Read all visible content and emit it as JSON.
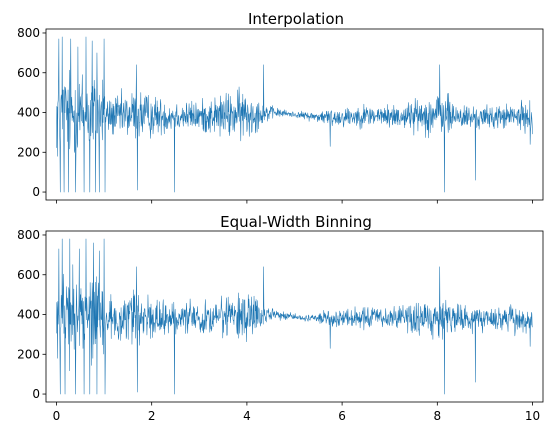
{
  "chart_data": [
    {
      "type": "line",
      "title": "Interpolation",
      "xlabel": "",
      "ylabel": "",
      "xlim": [
        -0.22,
        10.22
      ],
      "ylim": [
        -40,
        820
      ],
      "x_ticks": [
        0,
        2,
        4,
        6,
        8,
        10
      ],
      "x_tick_labels": [
        "",
        "",
        "",
        "",
        "",
        ""
      ],
      "y_ticks": [
        0,
        200,
        400,
        600,
        800
      ],
      "y_tick_labels": [
        "0",
        "200",
        "400",
        "600",
        "800"
      ],
      "grid": false,
      "legend": "none",
      "series_color": "#1f77b4",
      "profile": {
        "x": [
          0,
          0.3,
          0.6,
          1.0,
          1.05,
          1.5,
          1.7,
          2.0,
          2.5,
          3.0,
          3.5,
          4.0,
          4.3,
          4.6,
          5.0,
          5.4,
          5.8,
          6.5,
          7.0,
          7.5,
          8.0,
          8.2,
          8.6,
          9.0,
          9.5,
          10.0
        ],
        "center": [
          400,
          395,
          390,
          400,
          380,
          385,
          390,
          380,
          385,
          380,
          385,
          390,
          395,
          400,
          390,
          380,
          375,
          385,
          380,
          385,
          390,
          385,
          375,
          375,
          380,
          375
        ],
        "amplitude": [
          290,
          330,
          330,
          300,
          140,
          170,
          200,
          150,
          110,
          110,
          160,
          190,
          90,
          35,
          20,
          35,
          70,
          80,
          80,
          110,
          160,
          150,
          90,
          80,
          90,
          110
        ]
      },
      "extremes": [
        {
          "x": 0.02,
          "y": 180
        },
        {
          "x": 0.05,
          "y": 770
        },
        {
          "x": 0.08,
          "y": 0
        },
        {
          "x": 0.12,
          "y": 780
        },
        {
          "x": 0.16,
          "y": 0
        },
        {
          "x": 0.25,
          "y": 0
        },
        {
          "x": 0.3,
          "y": 770
        },
        {
          "x": 0.4,
          "y": 0
        },
        {
          "x": 0.45,
          "y": 730
        },
        {
          "x": 0.58,
          "y": 0
        },
        {
          "x": 0.62,
          "y": 780
        },
        {
          "x": 0.7,
          "y": 0
        },
        {
          "x": 0.75,
          "y": 760
        },
        {
          "x": 0.82,
          "y": 0
        },
        {
          "x": 0.85,
          "y": 700
        },
        {
          "x": 0.9,
          "y": 0
        },
        {
          "x": 1.0,
          "y": 770
        },
        {
          "x": 1.02,
          "y": 0
        },
        {
          "x": 1.68,
          "y": 640
        },
        {
          "x": 1.7,
          "y": 10
        },
        {
          "x": 2.48,
          "y": 0
        },
        {
          "x": 4.35,
          "y": 640
        },
        {
          "x": 5.75,
          "y": 230
        },
        {
          "x": 8.05,
          "y": 640
        },
        {
          "x": 8.15,
          "y": 0
        },
        {
          "x": 8.8,
          "y": 60
        },
        {
          "x": 9.95,
          "y": 240
        }
      ]
    },
    {
      "type": "line",
      "title": "Equal-Width Binning",
      "xlabel": "",
      "ylabel": "",
      "xlim": [
        -0.22,
        10.22
      ],
      "ylim": [
        -40,
        820
      ],
      "x_ticks": [
        0,
        2,
        4,
        6,
        8,
        10
      ],
      "x_tick_labels": [
        "0",
        "2",
        "4",
        "6",
        "8",
        "10"
      ],
      "y_ticks": [
        0,
        200,
        400,
        600,
        800
      ],
      "y_tick_labels": [
        "0",
        "200",
        "400",
        "600",
        "800"
      ],
      "grid": false,
      "legend": "none",
      "series_color": "#1f77b4",
      "profile": {
        "x": [
          0,
          0.3,
          0.6,
          1.0,
          1.05,
          1.5,
          1.7,
          2.0,
          2.5,
          3.0,
          3.5,
          4.0,
          4.3,
          4.6,
          5.0,
          5.4,
          5.8,
          6.5,
          7.0,
          7.5,
          8.0,
          8.2,
          8.6,
          9.0,
          9.5,
          10.0
        ],
        "center": [
          400,
          395,
          390,
          400,
          380,
          385,
          390,
          380,
          385,
          380,
          385,
          390,
          395,
          400,
          390,
          380,
          375,
          385,
          380,
          385,
          390,
          385,
          375,
          375,
          380,
          375
        ],
        "amplitude": [
          290,
          330,
          330,
          300,
          140,
          170,
          200,
          150,
          110,
          110,
          160,
          190,
          90,
          35,
          20,
          35,
          70,
          80,
          80,
          110,
          160,
          150,
          90,
          80,
          90,
          110
        ]
      },
      "extremes": [
        {
          "x": 0.02,
          "y": 180
        },
        {
          "x": 0.05,
          "y": 730
        },
        {
          "x": 0.08,
          "y": 0
        },
        {
          "x": 0.12,
          "y": 780
        },
        {
          "x": 0.18,
          "y": 0
        },
        {
          "x": 0.28,
          "y": 780
        },
        {
          "x": 0.4,
          "y": 0
        },
        {
          "x": 0.48,
          "y": 730
        },
        {
          "x": 0.58,
          "y": 0
        },
        {
          "x": 0.62,
          "y": 780
        },
        {
          "x": 0.7,
          "y": 0
        },
        {
          "x": 0.78,
          "y": 760
        },
        {
          "x": 0.85,
          "y": 0
        },
        {
          "x": 0.9,
          "y": 720
        },
        {
          "x": 1.0,
          "y": 780
        },
        {
          "x": 1.02,
          "y": 0
        },
        {
          "x": 1.68,
          "y": 640
        },
        {
          "x": 1.7,
          "y": 10
        },
        {
          "x": 2.48,
          "y": 0
        },
        {
          "x": 4.35,
          "y": 640
        },
        {
          "x": 5.75,
          "y": 230
        },
        {
          "x": 8.05,
          "y": 640
        },
        {
          "x": 8.15,
          "y": 0
        },
        {
          "x": 8.8,
          "y": 60
        },
        {
          "x": 9.95,
          "y": 240
        }
      ]
    }
  ]
}
